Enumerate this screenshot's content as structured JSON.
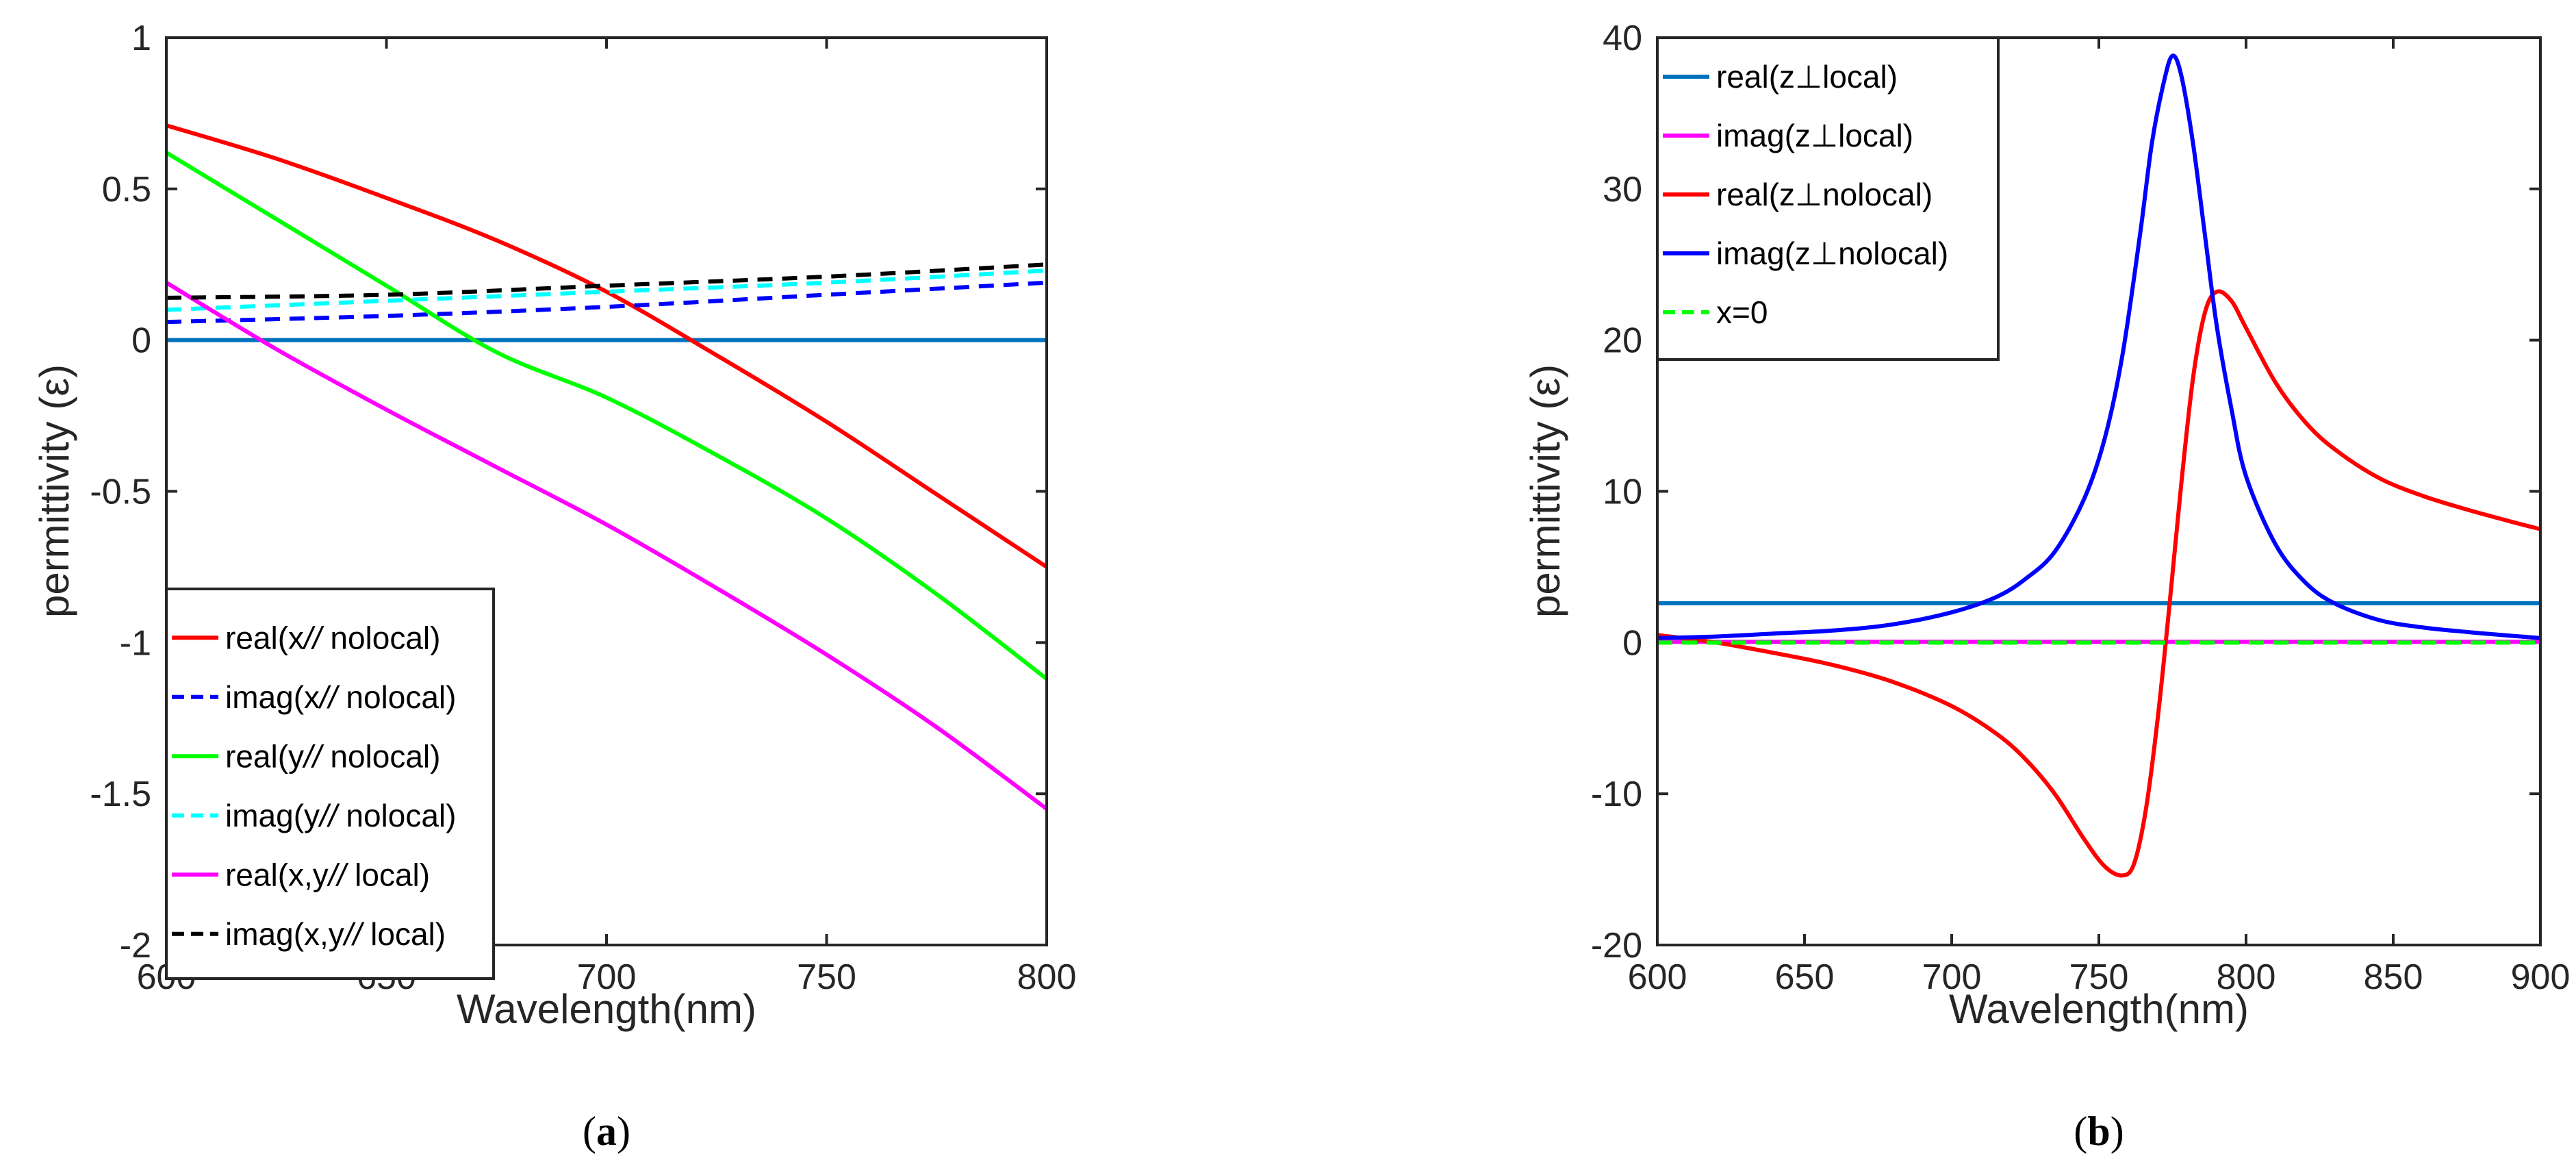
{
  "figure": {
    "caption_a": "(a)",
    "caption_a_letter": "a",
    "caption_b": "(b)",
    "caption_b_letter": "b"
  },
  "chart_data": [
    {
      "id": "a",
      "type": "line",
      "title": "",
      "xlabel": "Wavelength(nm)",
      "ylabel": "permittivity (ε)",
      "xlim": [
        600,
        800
      ],
      "ylim": [
        -2,
        1
      ],
      "xticks": [
        600,
        650,
        700,
        750,
        800
      ],
      "yticks": [
        1,
        0.5,
        0,
        -0.5,
        -1,
        -1.5,
        -2
      ],
      "ytick_labels": [
        "1",
        "0.5",
        "0",
        "-0.5",
        "-1",
        "-1.5",
        "-2"
      ],
      "grid": false,
      "legend_position": "bottom-left",
      "series": [
        {
          "name": "real(x// nolocal)",
          "label": "real(x",
          "label_suffix": " nolocal)",
          "color": "#ff0000",
          "dash": "solid",
          "in_legend": true,
          "x": [
            600,
            625,
            650,
            675,
            700,
            725,
            750,
            775,
            800
          ],
          "y": [
            0.71,
            0.6,
            0.47,
            0.33,
            0.16,
            -0.05,
            -0.27,
            -0.51,
            -0.75
          ]
        },
        {
          "name": "imag(x// nolocal)",
          "label": "imag(x",
          "label_suffix": " nolocal)",
          "color": "#0000ff",
          "dash": "dashed",
          "in_legend": true,
          "x": [
            600,
            650,
            700,
            750,
            800
          ],
          "y": [
            0.06,
            0.08,
            0.11,
            0.15,
            0.19
          ]
        },
        {
          "name": "real(y// nolocal)",
          "label": "real(y",
          "label_suffix": " nolocal)",
          "color": "#00ff00",
          "dash": "solid",
          "in_legend": true,
          "x": [
            600,
            625,
            650,
            675,
            700,
            725,
            750,
            775,
            800
          ],
          "y": [
            0.62,
            0.4,
            0.18,
            -0.04,
            -0.19,
            -0.38,
            -0.59,
            -0.84,
            -1.12
          ]
        },
        {
          "name": "imag(y// nolocal)",
          "label": "imag(y",
          "label_suffix": " nolocal)",
          "color": "#00ffff",
          "dash": "dashed",
          "in_legend": true,
          "x": [
            600,
            650,
            700,
            750,
            800
          ],
          "y": [
            0.1,
            0.13,
            0.16,
            0.19,
            0.23
          ]
        },
        {
          "name": "real(x,y// local)",
          "label": "real(x,y",
          "label_suffix": " local)",
          "color": "#ff00ff",
          "dash": "solid",
          "in_legend": true,
          "x": [
            600,
            625,
            650,
            675,
            700,
            725,
            750,
            775,
            800
          ],
          "y": [
            0.19,
            -0.03,
            -0.23,
            -0.42,
            -0.61,
            -0.82,
            -1.04,
            -1.28,
            -1.55
          ]
        },
        {
          "name": "imag(x,y// local)",
          "label": "imag(x,y",
          "label_suffix": " local)",
          "color": "#000000",
          "dash": "dashed",
          "in_legend": true,
          "x": [
            600,
            650,
            700,
            750,
            800
          ],
          "y": [
            0.14,
            0.15,
            0.18,
            0.21,
            0.25
          ]
        },
        {
          "name": "zero",
          "label": "",
          "label_suffix": "",
          "color": "#0072bd",
          "dash": "solid",
          "in_legend": false,
          "x": [
            600,
            800
          ],
          "y": [
            0,
            0
          ]
        }
      ]
    },
    {
      "id": "b",
      "type": "line",
      "title": "",
      "xlabel": "Wavelength(nm)",
      "ylabel": "permittivity (ε)",
      "xlim": [
        600,
        900
      ],
      "ylim": [
        -20,
        40
      ],
      "xticks": [
        600,
        650,
        700,
        750,
        800,
        850,
        900
      ],
      "yticks": [
        40,
        30,
        20,
        10,
        0,
        -10,
        -20
      ],
      "ytick_labels": [
        "40",
        "30",
        "20",
        "10",
        "0",
        "-10",
        "-20"
      ],
      "grid": false,
      "legend_position": "top-left",
      "series": [
        {
          "name": "real(z⊥local)",
          "label": "real(z⊥local)",
          "label_suffix": "",
          "color": "#0072bd",
          "dash": "solid",
          "in_legend": true,
          "x": [
            600,
            900
          ],
          "y": [
            2.6,
            2.6
          ]
        },
        {
          "name": "imag(z⊥local)",
          "label": "imag(z⊥local)",
          "label_suffix": "",
          "color": "#ff00ff",
          "dash": "solid",
          "in_legend": true,
          "x": [
            600,
            900
          ],
          "y": [
            0.05,
            0.05
          ]
        },
        {
          "name": "real(z⊥nolocal)",
          "label": "real(z⊥nolocal)",
          "label_suffix": "",
          "color": "#ff0000",
          "dash": "solid",
          "in_legend": true,
          "x": [
            600,
            620,
            640,
            660,
            680,
            700,
            715,
            725,
            735,
            745,
            752,
            758,
            762,
            766,
            770,
            774,
            778,
            782,
            786,
            790,
            795,
            800,
            810,
            820,
            830,
            845,
            860,
            875,
            890,
            900
          ],
          "y": [
            0.5,
            0.0,
            -0.7,
            -1.5,
            -2.6,
            -4.2,
            -6.0,
            -7.7,
            -10.0,
            -13.0,
            -14.8,
            -15.4,
            -14.6,
            -11.0,
            -5.0,
            2.5,
            10.5,
            17.5,
            21.8,
            23.2,
            22.6,
            20.8,
            17.2,
            14.6,
            12.8,
            10.9,
            9.7,
            8.8,
            8.0,
            7.5
          ]
        },
        {
          "name": "imag(z⊥nolocal)",
          "label": "imag(z⊥nolocal)",
          "label_suffix": "",
          "color": "#0000ff",
          "dash": "solid",
          "in_legend": true,
          "x": [
            600,
            620,
            640,
            660,
            680,
            700,
            715,
            725,
            735,
            745,
            752,
            758,
            764,
            768,
            772,
            775,
            778,
            782,
            786,
            790,
            795,
            800,
            810,
            820,
            830,
            845,
            860,
            875,
            890,
            900
          ],
          "y": [
            0.3,
            0.4,
            0.6,
            0.8,
            1.2,
            2.0,
            3.0,
            4.2,
            6.0,
            9.5,
            13.5,
            19.0,
            27.0,
            33.0,
            37.0,
            38.8,
            37.5,
            33.0,
            27.0,
            21.0,
            15.5,
            11.0,
            6.5,
            4.0,
            2.6,
            1.5,
            1.0,
            0.7,
            0.45,
            0.3
          ]
        },
        {
          "name": "x=0",
          "label": "x=0",
          "label_suffix": "",
          "color": "#00ff00",
          "dash": "dashed",
          "in_legend": true,
          "x": [
            600,
            900
          ],
          "y": [
            0,
            0
          ]
        }
      ]
    }
  ]
}
